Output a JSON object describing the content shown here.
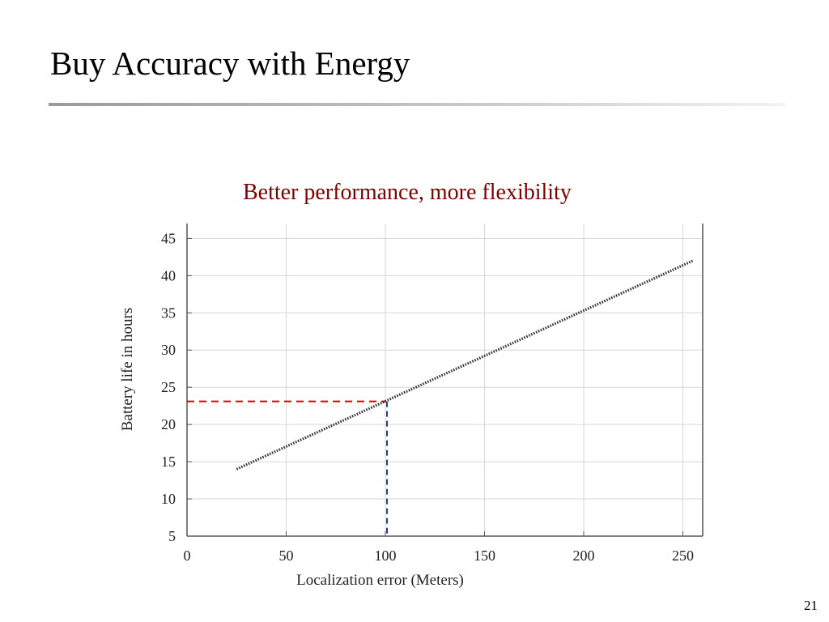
{
  "slide": {
    "title": "Buy Accuracy with Energy",
    "subtitle": "Better performance, more flexibility",
    "page_number": "21"
  },
  "chart_data": {
    "type": "line",
    "xlabel": "Localization error (Meters)",
    "ylabel": "Battery life in hours",
    "xlim": [
      0,
      260
    ],
    "ylim": [
      5,
      47
    ],
    "xticks": [
      0,
      50,
      100,
      150,
      200,
      250
    ],
    "yticks": [
      5,
      10,
      15,
      20,
      25,
      30,
      35,
      40,
      45
    ],
    "grid": true,
    "series": [
      {
        "x": [
          25,
          255
        ],
        "y": [
          14,
          42
        ],
        "color": "#333333",
        "style": "dotted"
      }
    ],
    "annotations": [
      {
        "kind": "horizontal-dashed",
        "y": 23.1,
        "x_from": 0,
        "x_to": 100,
        "color": "#e00000"
      },
      {
        "kind": "vertical-dashed",
        "x": 100,
        "y_from": 5,
        "y_to": 23.1,
        "color": "#1f3f8f"
      }
    ]
  }
}
